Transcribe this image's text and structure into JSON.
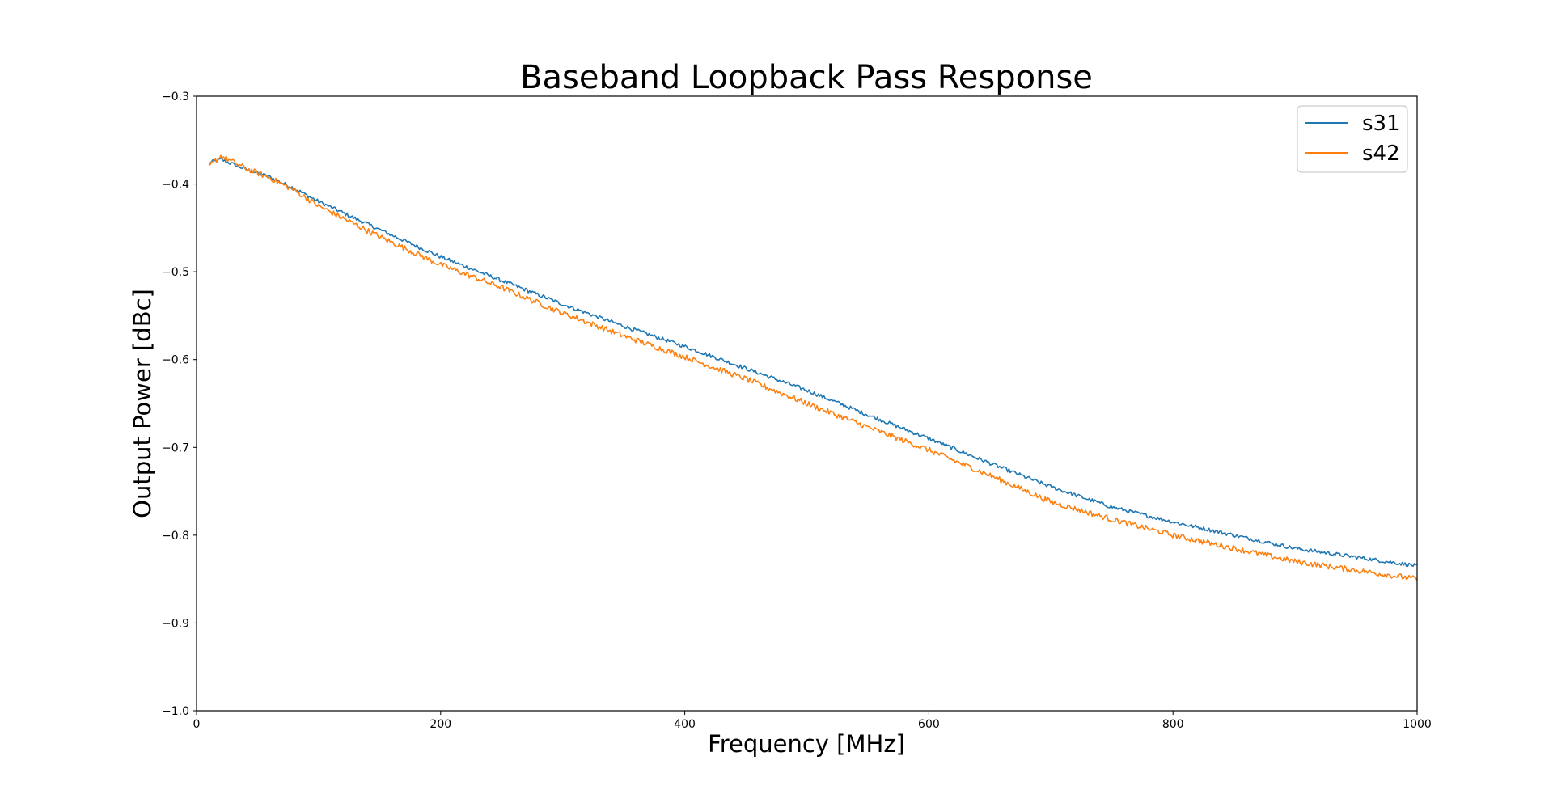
{
  "chart_data": {
    "type": "line",
    "title": "Baseband Loopback Pass Response",
    "xlabel": "Frequency [MHz]",
    "ylabel": "Output Power [dBc]",
    "xlim": [
      0,
      1000
    ],
    "ylim": [
      -1.0,
      -0.3
    ],
    "x_ticks": [
      0,
      200,
      400,
      600,
      800,
      1000
    ],
    "x_tick_labels": [
      "0",
      "200",
      "400",
      "600",
      "800",
      "1000"
    ],
    "y_ticks": [
      -1.0,
      -0.9,
      -0.8,
      -0.7,
      -0.6,
      -0.5,
      -0.4,
      -0.3
    ],
    "y_tick_labels": [
      "−1.0",
      "−0.9",
      "−0.8",
      "−0.7",
      "−0.6",
      "−0.5",
      "−0.4",
      "−0.3"
    ],
    "grid": false,
    "legend_position": "top-right",
    "x": [
      10,
      20,
      40,
      60,
      80,
      100,
      150,
      200,
      250,
      300,
      350,
      400,
      450,
      500,
      550,
      600,
      650,
      700,
      750,
      800,
      850,
      900,
      950,
      1000
    ],
    "series": [
      {
        "name": "s31",
        "color": "#1f77b4",
        "values": [
          -0.376,
          -0.372,
          -0.383,
          -0.392,
          -0.405,
          -0.42,
          -0.452,
          -0.483,
          -0.51,
          -0.537,
          -0.562,
          -0.585,
          -0.61,
          -0.635,
          -0.663,
          -0.69,
          -0.718,
          -0.745,
          -0.768,
          -0.785,
          -0.8,
          -0.815,
          -0.825,
          -0.835
        ]
      },
      {
        "name": "s42",
        "color": "#ff7f0e",
        "values": [
          -0.38,
          -0.368,
          -0.382,
          -0.393,
          -0.407,
          -0.425,
          -0.46,
          -0.492,
          -0.518,
          -0.547,
          -0.573,
          -0.597,
          -0.622,
          -0.65,
          -0.677,
          -0.703,
          -0.732,
          -0.762,
          -0.782,
          -0.8,
          -0.815,
          -0.83,
          -0.84,
          -0.85
        ]
      }
    ]
  }
}
